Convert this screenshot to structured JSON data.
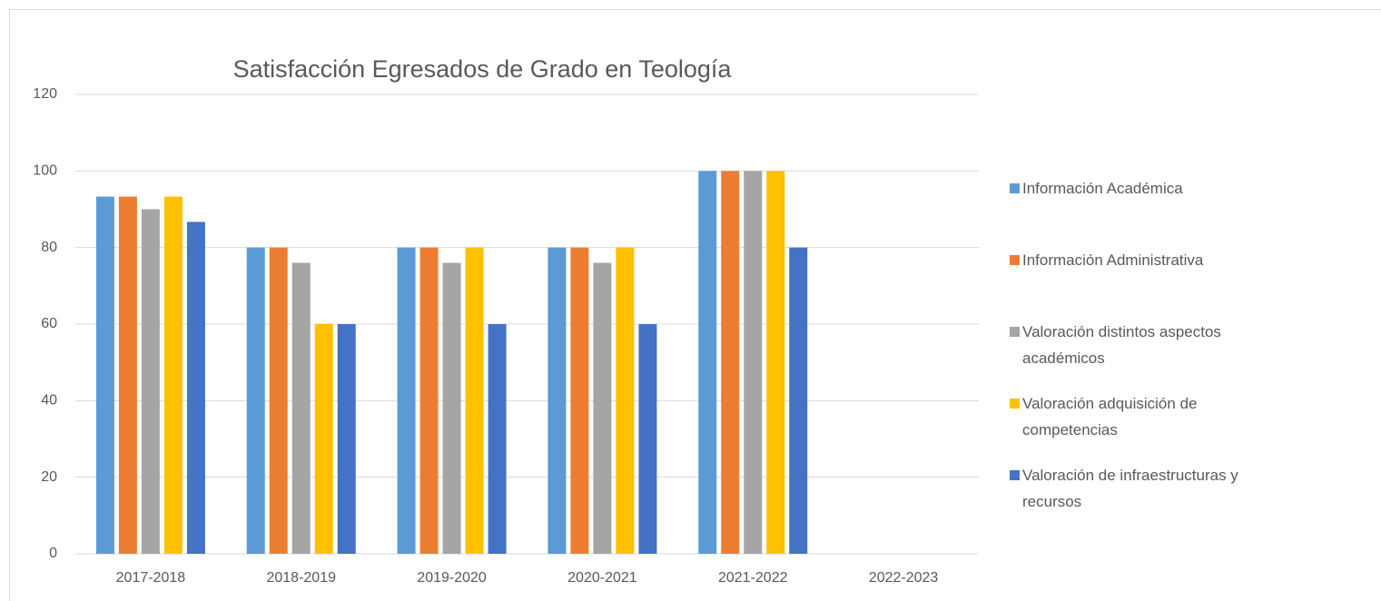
{
  "chart_data": {
    "type": "bar",
    "title": "Satisfacción Egresados de Grado en Teología",
    "categories": [
      "2017-2018",
      "2018-2019",
      "2019-2020",
      "2020-2021",
      "2021-2022",
      "2022-2023"
    ],
    "series": [
      {
        "name": "Información Académica",
        "color": "#5b9bd5",
        "values": [
          93.3,
          80,
          80,
          80,
          100,
          null
        ]
      },
      {
        "name": "Información Administrativa",
        "color": "#ed7d31",
        "values": [
          93.3,
          80,
          80,
          80,
          100,
          null
        ]
      },
      {
        "name": "Valoración distintos aspectos académicos",
        "color": "#a5a5a5",
        "values": [
          90,
          76,
          76,
          76,
          100,
          null
        ]
      },
      {
        "name": "Valoración adquisición de competencias",
        "color": "#ffc000",
        "values": [
          93.3,
          60,
          80,
          80,
          100,
          null
        ]
      },
      {
        "name": "Valoración de infraestructuras y recursos",
        "color": "#4472c4",
        "values": [
          86.7,
          60,
          60,
          60,
          80,
          null
        ]
      }
    ],
    "ylim": [
      0,
      120
    ],
    "yticks": [
      0,
      20,
      40,
      60,
      80,
      100,
      120
    ],
    "grid": true,
    "legend": "right"
  }
}
